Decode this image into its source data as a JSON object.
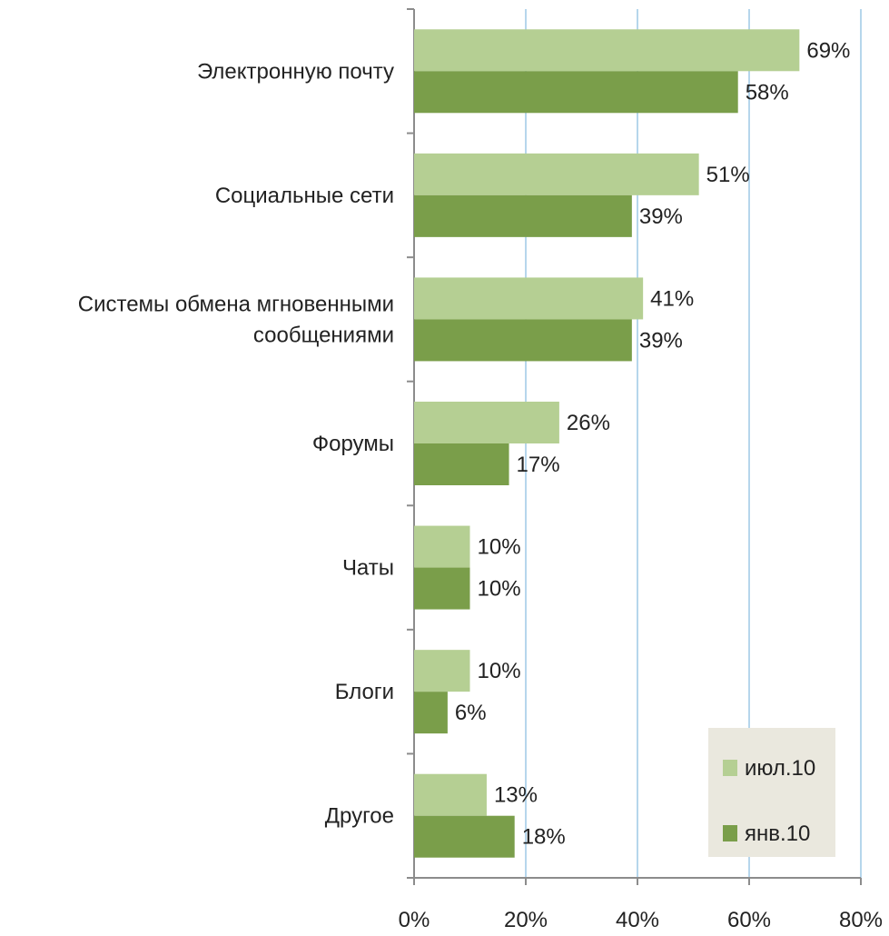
{
  "chart_data": {
    "type": "bar",
    "orientation": "horizontal",
    "categories": [
      [
        "Электронную почту"
      ],
      [
        "Социальные сети"
      ],
      [
        "Системы обмена мгновенными",
        "сообщениями"
      ],
      [
        "Форумы"
      ],
      [
        "Чаты"
      ],
      [
        "Блоги"
      ],
      [
        "Другое"
      ]
    ],
    "series": [
      {
        "name": "июл.10",
        "values": [
          69,
          51,
          41,
          26,
          10,
          10,
          13
        ],
        "labels": [
          "69%",
          "51%",
          "41%",
          "26%",
          "10%",
          "10%",
          "13%"
        ],
        "color": "#b5cf93"
      },
      {
        "name": "янв.10",
        "values": [
          58,
          39,
          39,
          17,
          10,
          6,
          18
        ],
        "labels": [
          "58%",
          "39%",
          "39%",
          "17%",
          "10%",
          "6%",
          "18%"
        ],
        "color": "#7a9e4a"
      }
    ],
    "x_ticks": [
      0,
      20,
      40,
      60,
      80
    ],
    "x_tick_labels": [
      "0%",
      "20%",
      "40%",
      "60%",
      "80%"
    ],
    "xlim": [
      0,
      80
    ],
    "grid": "vertical",
    "legend_position": "bottom-right",
    "colors": {
      "grid": "#9ec8e6",
      "axis": "#8c8c8c",
      "legend_bg": "#eae8de",
      "text": "#222222"
    }
  }
}
